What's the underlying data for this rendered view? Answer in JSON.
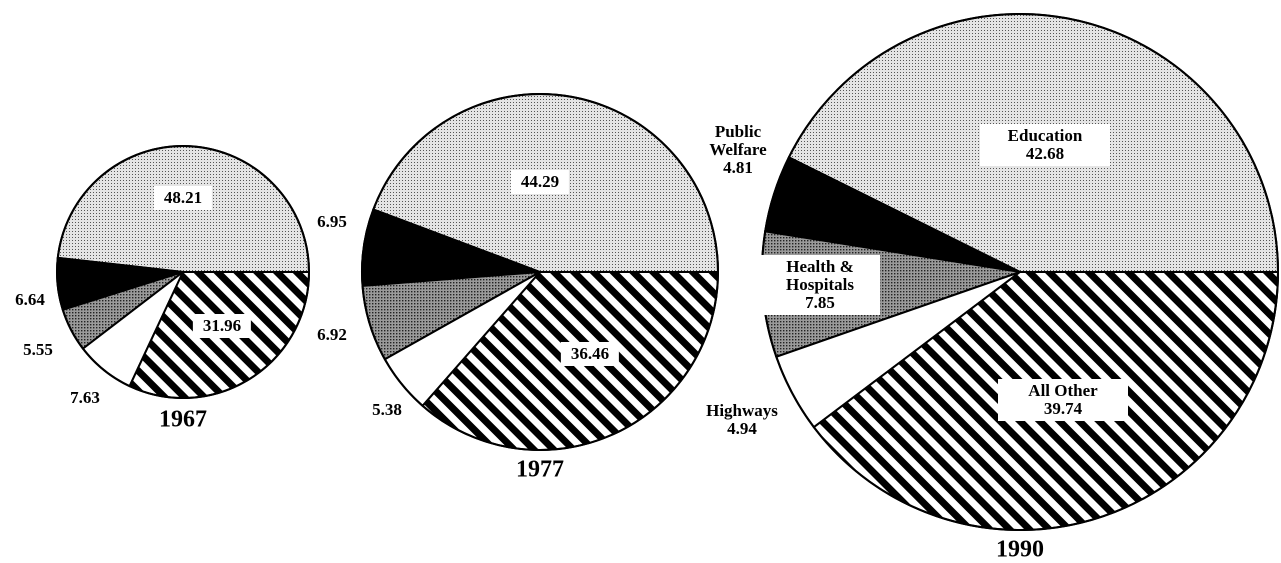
{
  "chart_data": [
    {
      "type": "pie",
      "title": "1967",
      "values": [
        48.21,
        6.64,
        5.55,
        7.63,
        31.96
      ]
    },
    {
      "type": "pie",
      "title": "1977",
      "values": [
        44.29,
        6.95,
        6.92,
        5.38,
        36.46
      ]
    },
    {
      "type": "pie",
      "title": "1990",
      "categories": [
        "Education",
        "Public Welfare",
        "Health & Hospitals",
        "Highways",
        "All Other"
      ],
      "values": [
        42.68,
        4.81,
        7.85,
        4.94,
        39.74
      ]
    }
  ]
}
